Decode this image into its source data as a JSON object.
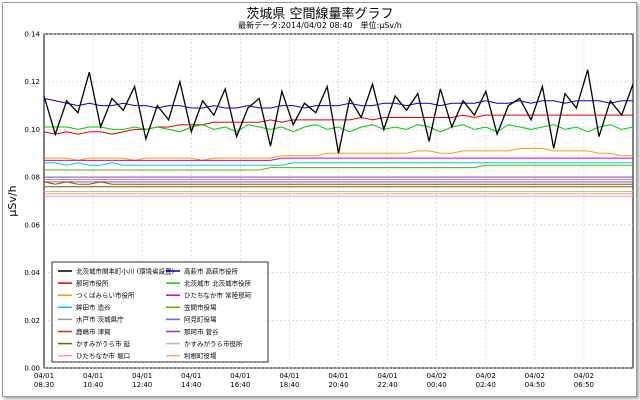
{
  "page": {
    "title": "茨城県 空間線量率グラフ",
    "subtitle_latest": "最新データ:2014/04/02 08:40",
    "subtitle_unit": "単位:μSv/h"
  },
  "chart_data": {
    "type": "line",
    "title": "茨城県 空間線量率グラフ",
    "ylabel": "μSv/h",
    "ylim": [
      0,
      0.14
    ],
    "yticks": [
      "0.00",
      "0.02",
      "0.04",
      "0.06",
      "0.08",
      "0.10",
      "0.12",
      "0.14"
    ],
    "ytick_values": [
      0,
      0.02,
      0.04,
      0.06,
      0.08,
      0.1,
      0.12,
      0.14
    ],
    "xticks": [
      [
        "04/01",
        "08:30"
      ],
      [
        "04/01",
        "10:40"
      ],
      [
        "04/01",
        "12:40"
      ],
      [
        "04/01",
        "14:40"
      ],
      [
        "04/01",
        "16:40"
      ],
      [
        "04/01",
        "18:40"
      ],
      [
        "04/01",
        "20:40"
      ],
      [
        "04/01",
        "22:40"
      ],
      [
        "04/02",
        "00:40"
      ],
      [
        "04/02",
        "02:40"
      ],
      [
        "04/02",
        "04:50"
      ],
      [
        "04/02",
        "06:50"
      ]
    ],
    "grid": true,
    "legend_position": "bottom-left",
    "series": [
      {
        "name": "北茨城市関本町小川 (環境省設置)",
        "color": "#000000",
        "values": [
          0.114,
          0.098,
          0.112,
          0.107,
          0.124,
          0.101,
          0.113,
          0.108,
          0.118,
          0.096,
          0.11,
          0.104,
          0.12,
          0.099,
          0.112,
          0.106,
          0.117,
          0.097,
          0.109,
          0.113,
          0.093,
          0.116,
          0.102,
          0.111,
          0.107,
          0.118,
          0.09,
          0.113,
          0.105,
          0.119,
          0.1,
          0.114,
          0.108,
          0.115,
          0.095,
          0.117,
          0.101,
          0.112,
          0.106,
          0.116,
          0.098,
          0.11,
          0.113,
          0.104,
          0.118,
          0.092,
          0.115,
          0.109,
          0.125,
          0.097,
          0.112,
          0.106,
          0.119
        ]
      },
      {
        "name": "高萩市 高萩市役所",
        "color": "#0000cc",
        "values": [
          0.113,
          0.112,
          0.111,
          0.11,
          0.111,
          0.11,
          0.11,
          0.111,
          0.11,
          0.11,
          0.109,
          0.11,
          0.11,
          0.109,
          0.109,
          0.11,
          0.109,
          0.109,
          0.11,
          0.109,
          0.109,
          0.11,
          0.11,
          0.109,
          0.11,
          0.11,
          0.11,
          0.111,
          0.11,
          0.11,
          0.111,
          0.111,
          0.11,
          0.111,
          0.111,
          0.11,
          0.111,
          0.111,
          0.111,
          0.112,
          0.111,
          0.111,
          0.112,
          0.111,
          0.112,
          0.112,
          0.111,
          0.112,
          0.112,
          0.112,
          0.111,
          0.112,
          0.112
        ]
      },
      {
        "name": "那珂市役所",
        "color": "#dd0000",
        "values": [
          0.099,
          0.098,
          0.099,
          0.098,
          0.099,
          0.099,
          0.098,
          0.099,
          0.1,
          0.1,
          0.101,
          0.101,
          0.102,
          0.102,
          0.102,
          0.103,
          0.103,
          0.103,
          0.103,
          0.103,
          0.104,
          0.103,
          0.104,
          0.104,
          0.104,
          0.104,
          0.104,
          0.104,
          0.105,
          0.104,
          0.105,
          0.105,
          0.105,
          0.105,
          0.105,
          0.105,
          0.105,
          0.106,
          0.105,
          0.106,
          0.106,
          0.106,
          0.106,
          0.106,
          0.106,
          0.106,
          0.106,
          0.106,
          0.106,
          0.106,
          0.106,
          0.106,
          0.106
        ]
      },
      {
        "name": "北茨城市 北茨城市役所",
        "color": "#00cc00",
        "values": [
          0.101,
          0.101,
          0.101,
          0.1,
          0.101,
          0.101,
          0.1,
          0.1,
          0.101,
          0.1,
          0.101,
          0.1,
          0.099,
          0.101,
          0.102,
          0.1,
          0.101,
          0.099,
          0.102,
          0.101,
          0.1,
          0.101,
          0.099,
          0.101,
          0.102,
          0.1,
          0.101,
          0.099,
          0.101,
          0.102,
          0.1,
          0.101,
          0.1,
          0.102,
          0.101,
          0.099,
          0.101,
          0.102,
          0.1,
          0.101,
          0.099,
          0.102,
          0.101,
          0.1,
          0.101,
          0.102,
          0.1,
          0.101,
          0.099,
          0.101,
          0.102,
          0.1,
          0.101
        ]
      },
      {
        "name": "つくばみらい市役所",
        "color": "#ff9900",
        "values": [
          0.088,
          0.088,
          0.088,
          0.087,
          0.088,
          0.088,
          0.088,
          0.088,
          0.087,
          0.088,
          0.088,
          0.088,
          0.088,
          0.088,
          0.087,
          0.088,
          0.088,
          0.088,
          0.088,
          0.088,
          0.088,
          0.089,
          0.089,
          0.089,
          0.089,
          0.09,
          0.09,
          0.09,
          0.09,
          0.09,
          0.09,
          0.09,
          0.09,
          0.091,
          0.091,
          0.09,
          0.09,
          0.091,
          0.091,
          0.091,
          0.091,
          0.091,
          0.092,
          0.092,
          0.092,
          0.091,
          0.091,
          0.091,
          0.091,
          0.09,
          0.09,
          0.089,
          0.089
        ]
      },
      {
        "name": "ひたちなか市 常陸那珂",
        "color": "#cc00cc",
        "values": [
          0.087,
          0.087,
          0.087,
          0.087,
          0.087,
          0.087,
          0.087,
          0.087,
          0.087,
          0.087,
          0.087,
          0.087,
          0.087,
          0.087,
          0.087,
          0.087,
          0.087,
          0.087,
          0.087,
          0.087,
          0.087,
          0.088,
          0.088,
          0.088,
          0.088,
          0.088,
          0.088,
          0.088,
          0.088,
          0.088,
          0.088,
          0.088,
          0.088,
          0.088,
          0.088,
          0.088,
          0.088,
          0.088,
          0.088,
          0.088,
          0.088,
          0.088,
          0.088,
          0.088,
          0.088,
          0.088,
          0.088,
          0.088,
          0.088,
          0.088,
          0.088,
          0.088,
          0.088
        ]
      },
      {
        "name": "鉾田市 造谷",
        "color": "#00cccc",
        "values": [
          0.086,
          0.086,
          0.085,
          0.086,
          0.085,
          0.085,
          0.086,
          0.085,
          0.085,
          0.085,
          0.085,
          0.085,
          0.085,
          0.085,
          0.085,
          0.085,
          0.085,
          0.085,
          0.085,
          0.085,
          0.085,
          0.085,
          0.086,
          0.086,
          0.086,
          0.086,
          0.086,
          0.086,
          0.086,
          0.086,
          0.086,
          0.086,
          0.086,
          0.086,
          0.086,
          0.086,
          0.086,
          0.086,
          0.086,
          0.086,
          0.086,
          0.086,
          0.086,
          0.086,
          0.086,
          0.086,
          0.086,
          0.086,
          0.086,
          0.086,
          0.086,
          0.086,
          0.086
        ]
      },
      {
        "name": "笠間市役場",
        "color": "#66aa00",
        "values": [
          0.083,
          0.083,
          0.083,
          0.083,
          0.083,
          0.083,
          0.083,
          0.083,
          0.083,
          0.083,
          0.083,
          0.083,
          0.083,
          0.083,
          0.083,
          0.083,
          0.083,
          0.083,
          0.083,
          0.083,
          0.084,
          0.084,
          0.084,
          0.084,
          0.084,
          0.084,
          0.084,
          0.084,
          0.084,
          0.084,
          0.084,
          0.084,
          0.084,
          0.084,
          0.084,
          0.084,
          0.084,
          0.084,
          0.084,
          0.085,
          0.085,
          0.085,
          0.085,
          0.085,
          0.085,
          0.085,
          0.085,
          0.085,
          0.085,
          0.085,
          0.085,
          0.085,
          0.085
        ]
      },
      {
        "name": "水戸市 茨城県庁",
        "color": "#999999",
        "values": [
          0.079,
          0.079,
          0.079,
          0.079,
          0.079,
          0.079,
          0.079,
          0.079,
          0.079,
          0.079,
          0.079,
          0.079,
          0.079,
          0.079,
          0.079,
          0.079,
          0.079,
          0.079,
          0.079,
          0.079,
          0.079,
          0.079,
          0.079,
          0.079,
          0.079,
          0.079,
          0.079,
          0.079,
          0.079,
          0.079,
          0.079,
          0.079,
          0.079,
          0.079,
          0.079,
          0.079,
          0.079,
          0.079,
          0.079,
          0.079,
          0.079,
          0.079,
          0.079,
          0.079,
          0.079,
          0.079,
          0.079,
          0.079,
          0.079,
          0.079,
          0.079,
          0.079,
          0.079
        ]
      },
      {
        "name": "阿見町役場",
        "color": "#6666dd",
        "values": [
          0.078,
          0.078,
          0.078,
          0.078,
          0.078,
          0.078,
          0.078,
          0.078,
          0.078,
          0.078,
          0.078,
          0.078,
          0.078,
          0.078,
          0.078,
          0.078,
          0.078,
          0.078,
          0.078,
          0.078,
          0.078,
          0.078,
          0.078,
          0.078,
          0.078,
          0.078,
          0.078,
          0.078,
          0.078,
          0.078,
          0.078,
          0.078,
          0.078,
          0.078,
          0.078,
          0.078,
          0.078,
          0.078,
          0.078,
          0.078,
          0.078,
          0.078,
          0.078,
          0.078,
          0.078,
          0.078,
          0.078,
          0.078,
          0.078,
          0.078,
          0.078,
          0.078,
          0.078
        ]
      },
      {
        "name": "鹿嶋市 津賀",
        "color": "#cc3300",
        "values": [
          0.078,
          0.077,
          0.078,
          0.077,
          0.077,
          0.078,
          0.077,
          0.077,
          0.077,
          0.077,
          0.077,
          0.077,
          0.077,
          0.077,
          0.077,
          0.077,
          0.077,
          0.077,
          0.077,
          0.077,
          0.077,
          0.077,
          0.077,
          0.077,
          0.077,
          0.077,
          0.077,
          0.077,
          0.077,
          0.077,
          0.077,
          0.077,
          0.077,
          0.077,
          0.077,
          0.077,
          0.077,
          0.077,
          0.077,
          0.077,
          0.077,
          0.077,
          0.077,
          0.077,
          0.077,
          0.077,
          0.077,
          0.077,
          0.077,
          0.077,
          0.077,
          0.077,
          0.077
        ]
      },
      {
        "name": "那珂市 菅谷",
        "color": "#9933cc",
        "values": [
          0.08,
          0.08,
          0.08,
          0.08,
          0.08,
          0.08,
          0.08,
          0.08,
          0.08,
          0.08,
          0.08,
          0.08,
          0.08,
          0.08,
          0.08,
          0.08,
          0.08,
          0.08,
          0.08,
          0.08,
          0.08,
          0.08,
          0.08,
          0.08,
          0.08,
          0.08,
          0.08,
          0.08,
          0.08,
          0.08,
          0.08,
          0.08,
          0.08,
          0.08,
          0.08,
          0.08,
          0.08,
          0.08,
          0.08,
          0.08,
          0.08,
          0.08,
          0.08,
          0.08,
          0.08,
          0.08,
          0.08,
          0.08,
          0.08,
          0.08,
          0.08,
          0.08,
          0.08
        ]
      },
      {
        "name": "かすみがうら市 延",
        "color": "#666600",
        "values": [
          0.076,
          0.076,
          0.076,
          0.076,
          0.076,
          0.076,
          0.076,
          0.076,
          0.076,
          0.076,
          0.076,
          0.076,
          0.076,
          0.076,
          0.076,
          0.076,
          0.076,
          0.076,
          0.076,
          0.076,
          0.076,
          0.076,
          0.076,
          0.076,
          0.076,
          0.076,
          0.076,
          0.076,
          0.076,
          0.076,
          0.076,
          0.076,
          0.076,
          0.076,
          0.076,
          0.076,
          0.076,
          0.076,
          0.076,
          0.076,
          0.076,
          0.076,
          0.076,
          0.076,
          0.076,
          0.076,
          0.076,
          0.076,
          0.076,
          0.076,
          0.076,
          0.076,
          0.076
        ]
      },
      {
        "name": "かすみがうら市役所",
        "color": "#bbbbbb",
        "values": [
          0.074,
          0.074,
          0.074,
          0.074,
          0.074,
          0.074,
          0.074,
          0.074,
          0.074,
          0.074,
          0.074,
          0.074,
          0.074,
          0.074,
          0.074,
          0.074,
          0.074,
          0.074,
          0.074,
          0.074,
          0.074,
          0.074,
          0.074,
          0.074,
          0.074,
          0.074,
          0.074,
          0.074,
          0.074,
          0.074,
          0.074,
          0.074,
          0.074,
          0.074,
          0.074,
          0.074,
          0.074,
          0.074,
          0.074,
          0.074,
          0.074,
          0.074,
          0.074,
          0.074,
          0.074,
          0.074,
          0.074,
          0.074,
          0.074,
          0.074,
          0.074,
          0.074,
          0.074
        ]
      },
      {
        "name": "ひたちなか市 堀口",
        "color": "#ee99ee",
        "values": [
          0.072,
          0.072,
          0.072,
          0.072,
          0.072,
          0.072,
          0.072,
          0.072,
          0.072,
          0.072,
          0.072,
          0.072,
          0.072,
          0.072,
          0.072,
          0.072,
          0.072,
          0.072,
          0.072,
          0.072,
          0.072,
          0.072,
          0.072,
          0.072,
          0.072,
          0.072,
          0.072,
          0.072,
          0.072,
          0.072,
          0.072,
          0.072,
          0.072,
          0.072,
          0.072,
          0.072,
          0.072,
          0.072,
          0.072,
          0.072,
          0.072,
          0.072,
          0.072,
          0.072,
          0.072,
          0.072,
          0.072,
          0.072,
          0.072,
          0.072,
          0.072,
          0.072,
          0.072
        ]
      },
      {
        "name": "利根町役場",
        "color": "#ffaa66",
        "values": [
          0.073,
          0.073,
          0.073,
          0.073,
          0.073,
          0.073,
          0.073,
          0.073,
          0.073,
          0.073,
          0.073,
          0.073,
          0.073,
          0.073,
          0.073,
          0.073,
          0.073,
          0.073,
          0.073,
          0.073,
          0.073,
          0.073,
          0.073,
          0.073,
          0.073,
          0.073,
          0.073,
          0.073,
          0.073,
          0.073,
          0.073,
          0.073,
          0.073,
          0.073,
          0.073,
          0.073,
          0.073,
          0.073,
          0.073,
          0.073,
          0.073,
          0.073,
          0.073,
          0.073,
          0.073,
          0.073,
          0.073,
          0.073,
          0.073,
          0.073,
          0.073,
          0.073,
          0.073
        ]
      }
    ]
  }
}
